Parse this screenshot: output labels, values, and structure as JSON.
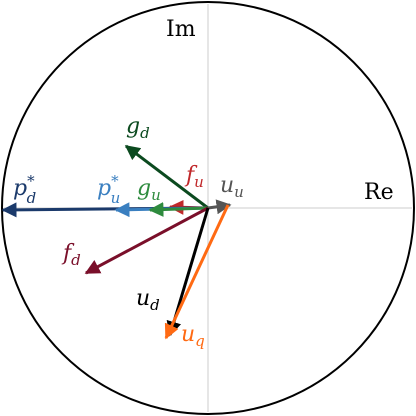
{
  "axes": {
    "imaginary": "Im",
    "real": "Re"
  },
  "vectors": [
    {
      "base": "g",
      "sub": "d"
    },
    {
      "base": "f",
      "sub": "u"
    },
    {
      "base": "u",
      "sub": "u"
    },
    {
      "base": "p",
      "sub": "d",
      "sup": "*"
    },
    {
      "base": "p",
      "sub": "u",
      "sup": "*"
    },
    {
      "base": "g",
      "sub": "u"
    },
    {
      "base": "f",
      "sub": "d"
    },
    {
      "base": "u",
      "sub": "d"
    },
    {
      "base": "u",
      "sub": "q"
    }
  ]
}
